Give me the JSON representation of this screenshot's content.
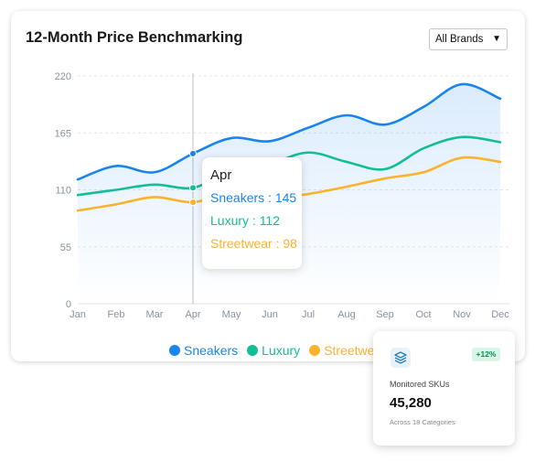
{
  "card": {
    "title": "12-Month Price Benchmarking",
    "filter": {
      "selected": "All Brands"
    }
  },
  "chart_data": {
    "type": "area",
    "title": "12-Month Price Benchmarking",
    "xlabel": "",
    "ylabel": "",
    "categories": [
      "Jan",
      "Feb",
      "Mar",
      "Apr",
      "May",
      "Jun",
      "Jul",
      "Aug",
      "Sep",
      "Oct",
      "Nov",
      "Dec"
    ],
    "ylim": [
      0,
      220
    ],
    "yticks": [
      0,
      55,
      110,
      165,
      220
    ],
    "grid": true,
    "legend_position": "bottom",
    "series": [
      {
        "name": "Sneakers",
        "color": "#1a85f0",
        "values": [
          120,
          133,
          127,
          145,
          160,
          157,
          170,
          182,
          173,
          190,
          212,
          198
        ],
        "filled": true
      },
      {
        "name": "Luxury",
        "color": "#14be94",
        "values": [
          105,
          110,
          115,
          112,
          128,
          135,
          146,
          137,
          130,
          150,
          161,
          156
        ]
      },
      {
        "name": "Streetwear",
        "color": "#fbb22d",
        "values": [
          90,
          96,
          103,
          98,
          107,
          102,
          106,
          113,
          121,
          127,
          141,
          137
        ]
      }
    ],
    "hover": {
      "index": 3,
      "label": "Apr"
    }
  },
  "tooltip": {
    "header": "Apr",
    "rows": [
      {
        "text": "Sneakers : 145",
        "color": "#1a85f0"
      },
      {
        "text": "Luxury : 112",
        "color": "#14be94"
      },
      {
        "text": "Streetwear : 98",
        "color": "#fbb22d"
      }
    ]
  },
  "kpi": {
    "icon": "stack-layers-icon",
    "badge": "+12%",
    "label": "Monitored SKUs",
    "value": "45,280",
    "sub": "Across 18 Categories"
  }
}
